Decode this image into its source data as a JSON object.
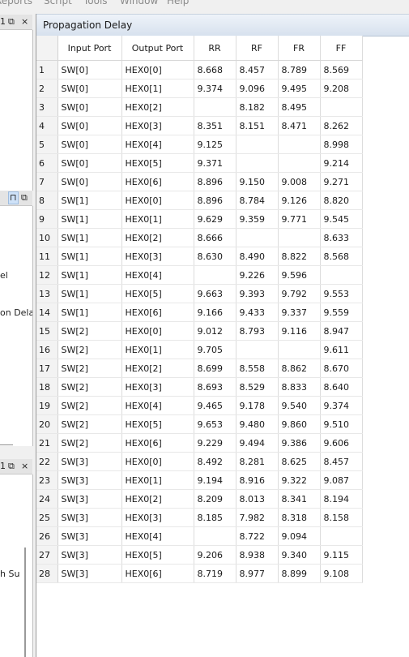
{
  "menu": [
    "Reports",
    "Script",
    "Tools",
    "Window",
    "Help"
  ],
  "left_panel": {
    "pane1_controls": [
      "1",
      "⧉",
      "×"
    ],
    "pane2_controls": [
      "⊓",
      "⧉"
    ],
    "pane2_texts": [
      "el",
      "on Delay"
    ],
    "pane3_controls": [
      "1",
      "⧉",
      "×"
    ],
    "pane3_texts": [
      "h Su"
    ]
  },
  "window": {
    "title": "Propagation Delay"
  },
  "table": {
    "columns": [
      "Input Port",
      "Output Port",
      "RR",
      "RF",
      "FR",
      "FF"
    ],
    "rows": [
      [
        "1",
        "SW[0]",
        "HEX0[0]",
        "8.668",
        "8.457",
        "8.789",
        "8.569"
      ],
      [
        "2",
        "SW[0]",
        "HEX0[1]",
        "9.374",
        "9.096",
        "9.495",
        "9.208"
      ],
      [
        "3",
        "SW[0]",
        "HEX0[2]",
        "",
        "8.182",
        "8.495",
        ""
      ],
      [
        "4",
        "SW[0]",
        "HEX0[3]",
        "8.351",
        "8.151",
        "8.471",
        "8.262"
      ],
      [
        "5",
        "SW[0]",
        "HEX0[4]",
        "9.125",
        "",
        "",
        "8.998"
      ],
      [
        "6",
        "SW[0]",
        "HEX0[5]",
        "9.371",
        "",
        "",
        "9.214"
      ],
      [
        "7",
        "SW[0]",
        "HEX0[6]",
        "8.896",
        "9.150",
        "9.008",
        "9.271"
      ],
      [
        "8",
        "SW[1]",
        "HEX0[0]",
        "8.896",
        "8.784",
        "9.126",
        "8.820"
      ],
      [
        "9",
        "SW[1]",
        "HEX0[1]",
        "9.629",
        "9.359",
        "9.771",
        "9.545"
      ],
      [
        "10",
        "SW[1]",
        "HEX0[2]",
        "8.666",
        "",
        "",
        "8.633"
      ],
      [
        "11",
        "SW[1]",
        "HEX0[3]",
        "8.630",
        "8.490",
        "8.822",
        "8.568"
      ],
      [
        "12",
        "SW[1]",
        "HEX0[4]",
        "",
        "9.226",
        "9.596",
        ""
      ],
      [
        "13",
        "SW[1]",
        "HEX0[5]",
        "9.663",
        "9.393",
        "9.792",
        "9.553"
      ],
      [
        "14",
        "SW[1]",
        "HEX0[6]",
        "9.166",
        "9.433",
        "9.337",
        "9.559"
      ],
      [
        "15",
        "SW[2]",
        "HEX0[0]",
        "9.012",
        "8.793",
        "9.116",
        "8.947"
      ],
      [
        "16",
        "SW[2]",
        "HEX0[1]",
        "9.705",
        "",
        "",
        "9.611"
      ],
      [
        "17",
        "SW[2]",
        "HEX0[2]",
        "8.699",
        "8.558",
        "8.862",
        "8.670"
      ],
      [
        "18",
        "SW[2]",
        "HEX0[3]",
        "8.693",
        "8.529",
        "8.833",
        "8.640"
      ],
      [
        "19",
        "SW[2]",
        "HEX0[4]",
        "9.465",
        "9.178",
        "9.540",
        "9.374"
      ],
      [
        "20",
        "SW[2]",
        "HEX0[5]",
        "9.653",
        "9.480",
        "9.860",
        "9.510"
      ],
      [
        "21",
        "SW[2]",
        "HEX0[6]",
        "9.229",
        "9.494",
        "9.386",
        "9.606"
      ],
      [
        "22",
        "SW[3]",
        "HEX0[0]",
        "8.492",
        "8.281",
        "8.625",
        "8.457"
      ],
      [
        "23",
        "SW[3]",
        "HEX0[1]",
        "9.194",
        "8.916",
        "9.322",
        "9.087"
      ],
      [
        "24",
        "SW[3]",
        "HEX0[2]",
        "8.209",
        "8.013",
        "8.341",
        "8.194"
      ],
      [
        "25",
        "SW[3]",
        "HEX0[3]",
        "8.185",
        "7.982",
        "8.318",
        "8.158"
      ],
      [
        "26",
        "SW[3]",
        "HEX0[4]",
        "",
        "8.722",
        "9.094",
        ""
      ],
      [
        "27",
        "SW[3]",
        "HEX0[5]",
        "9.206",
        "8.938",
        "9.340",
        "9.115"
      ],
      [
        "28",
        "SW[3]",
        "HEX0[6]",
        "8.719",
        "8.977",
        "8.899",
        "9.108"
      ]
    ]
  }
}
